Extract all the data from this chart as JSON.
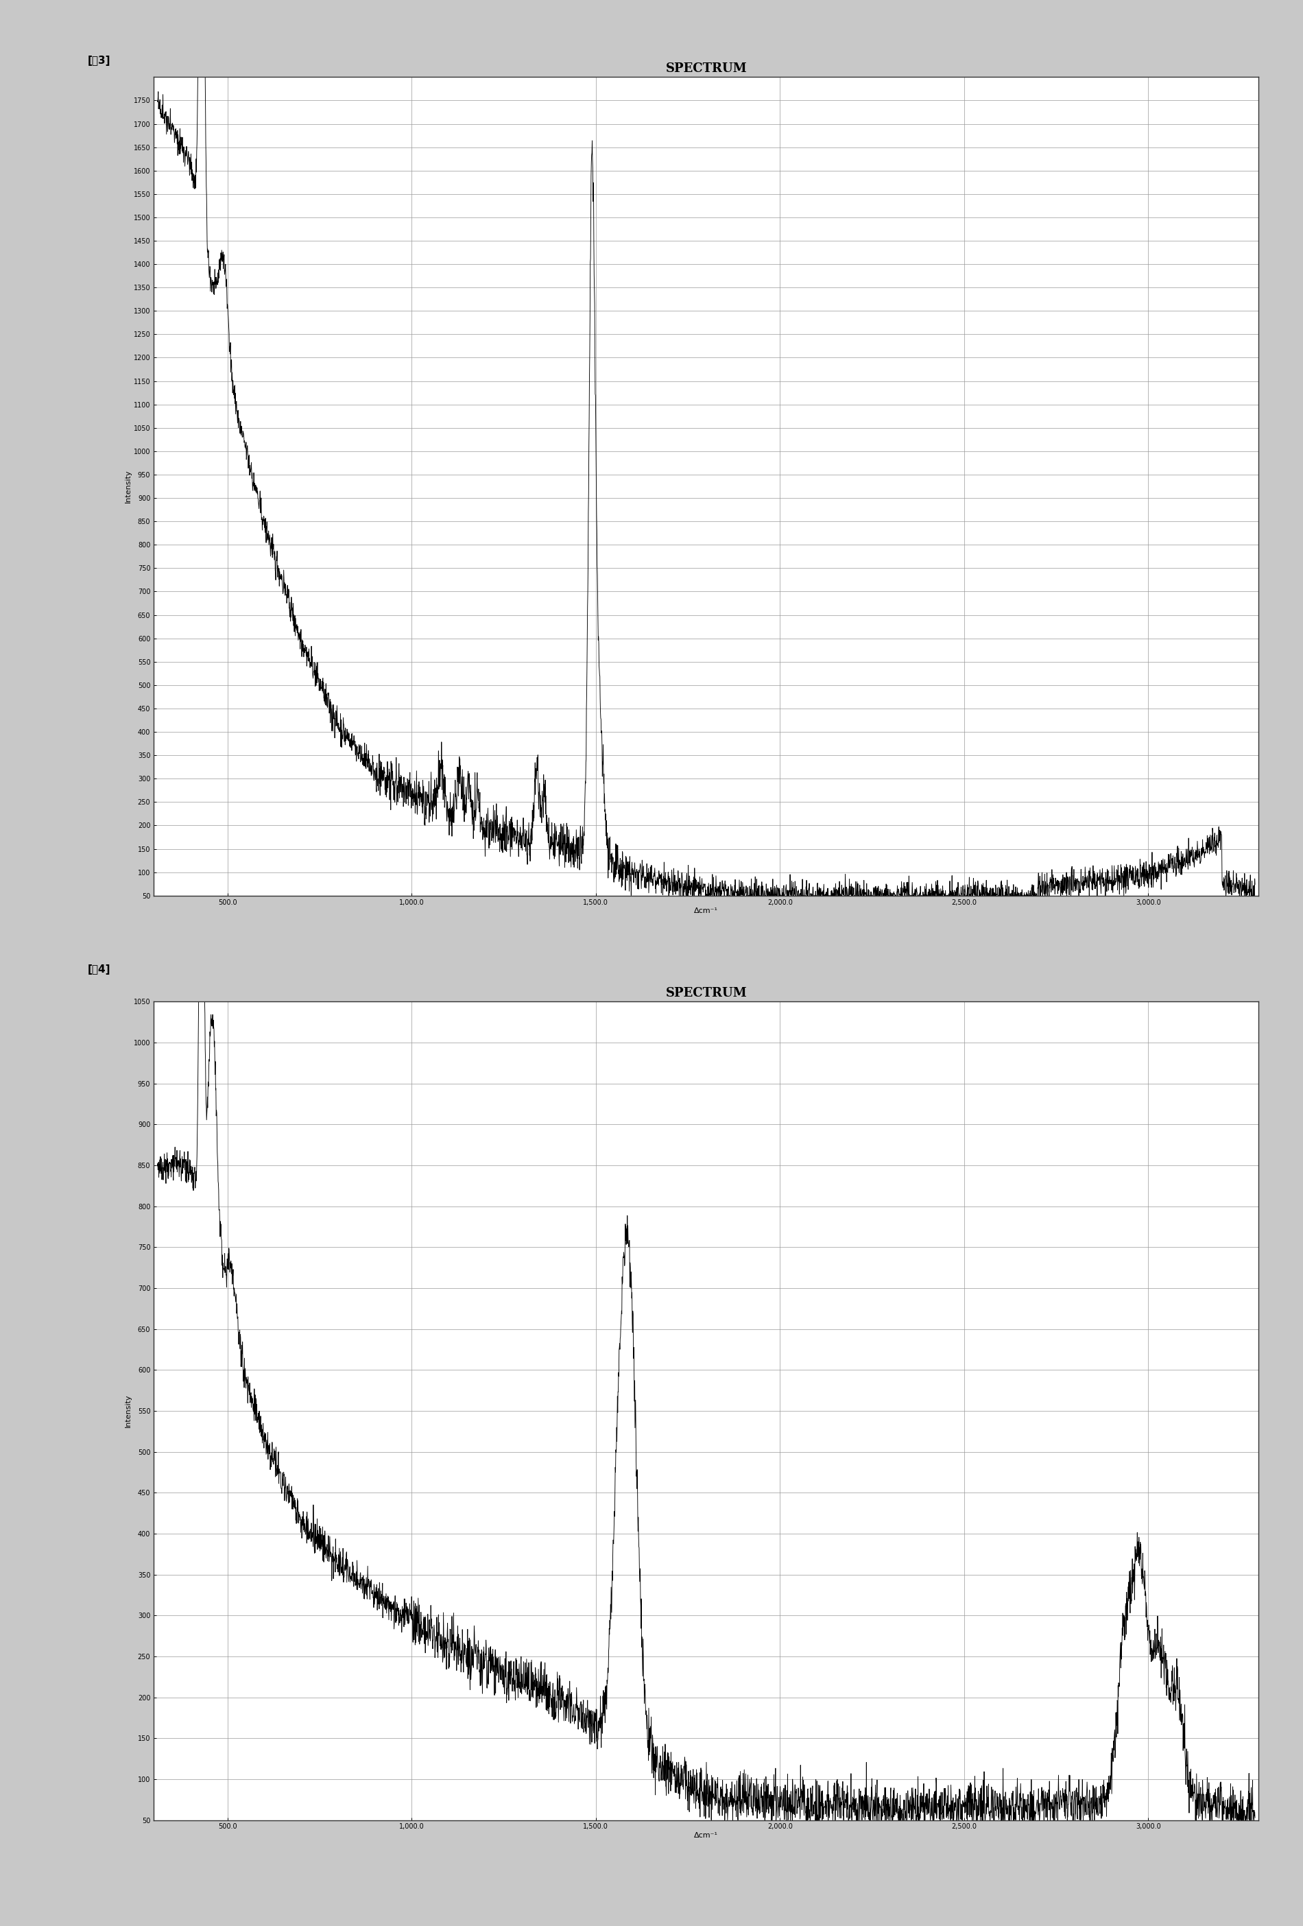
{
  "title": "SPECTRUM",
  "xlabel": "Δcm⁻¹",
  "ylabel": "Intensity",
  "fig3_label": "[図3]",
  "fig4_label": "[図4]",
  "chart1": {
    "xmin": 300,
    "xmax": 3300,
    "ymin": 50,
    "ymax": 1800,
    "yticks": [
      50,
      100,
      150,
      200,
      250,
      300,
      350,
      400,
      450,
      500,
      550,
      600,
      650,
      700,
      750,
      800,
      850,
      900,
      950,
      1000,
      1050,
      1100,
      1150,
      1200,
      1250,
      1300,
      1350,
      1400,
      1450,
      1500,
      1550,
      1600,
      1650,
      1700,
      1750
    ],
    "xticks": [
      500.0,
      1000.0,
      1500.0,
      2000.0,
      2500.0,
      3000.0
    ],
    "xtick_labels": [
      "500.0",
      "1,000.0",
      "1,500.0",
      "2,000.0",
      "2,500.0",
      "3,000.0"
    ]
  },
  "chart2": {
    "xmin": 300,
    "xmax": 3300,
    "ymin": 50,
    "ymax": 1050,
    "yticks": [
      50,
      100,
      150,
      200,
      250,
      300,
      350,
      400,
      450,
      500,
      550,
      600,
      650,
      700,
      750,
      800,
      850,
      900,
      950,
      1000,
      1050
    ],
    "xticks": [
      500.0,
      1000.0,
      1500.0,
      2000.0,
      2500.0,
      3000.0
    ],
    "xtick_labels": [
      "500.0",
      "1,000.0",
      "1,500.0",
      "2,000.0",
      "2,500.0",
      "3,000.0"
    ]
  },
  "outer_bg": "#c8c8c8",
  "plot_bg_color": "#ffffff",
  "line_color": "#000000",
  "grid_color": "#999999",
  "title_fontsize": 13,
  "label_fontsize": 8,
  "tick_fontsize": 7,
  "figlabel_fontsize": 11
}
